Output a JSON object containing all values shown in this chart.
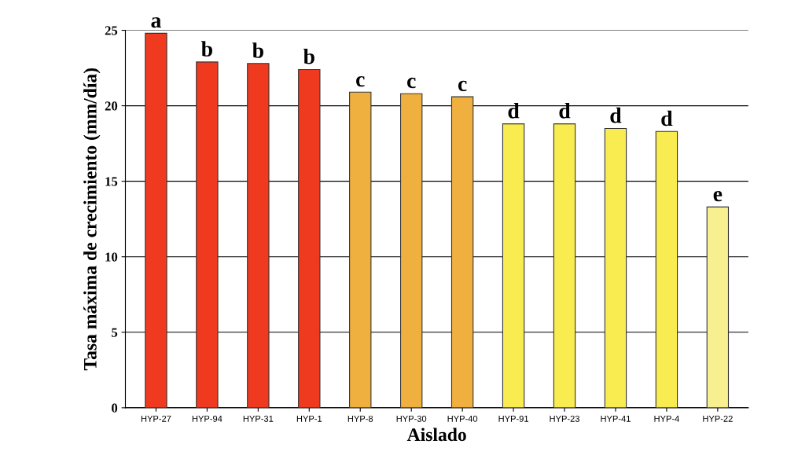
{
  "chart_data": {
    "type": "bar",
    "xlabel": "Aislado",
    "ylabel": "Tasa máxima de crecimiento (mm/día)",
    "categories": [
      "HYP-27",
      "HYP-94",
      "HYP-31",
      "HYP-1",
      "HYP-8",
      "HYP-30",
      "HYP-40",
      "HYP-91",
      "HYP-23",
      "HYP-41",
      "HYP-4",
      "HYP-22"
    ],
    "values": [
      24.8,
      22.9,
      22.8,
      22.4,
      20.9,
      20.8,
      20.6,
      18.8,
      18.8,
      18.5,
      18.3,
      13.3
    ],
    "colors": [
      "#f03a20",
      "#f03a20",
      "#f03a20",
      "#f03a20",
      "#f0b040",
      "#f0b040",
      "#f0b040",
      "#f8ec50",
      "#f8ec50",
      "#f8ec50",
      "#f8ec50",
      "#f8f090"
    ],
    "value_labels": [
      "a",
      "b",
      "b",
      "b",
      "c",
      "c",
      "c",
      "d",
      "d",
      "d",
      "d",
      "e"
    ],
    "ylim": [
      0,
      25
    ],
    "yticks": [
      0,
      5,
      10,
      15,
      20,
      25
    ],
    "grid": "y"
  }
}
